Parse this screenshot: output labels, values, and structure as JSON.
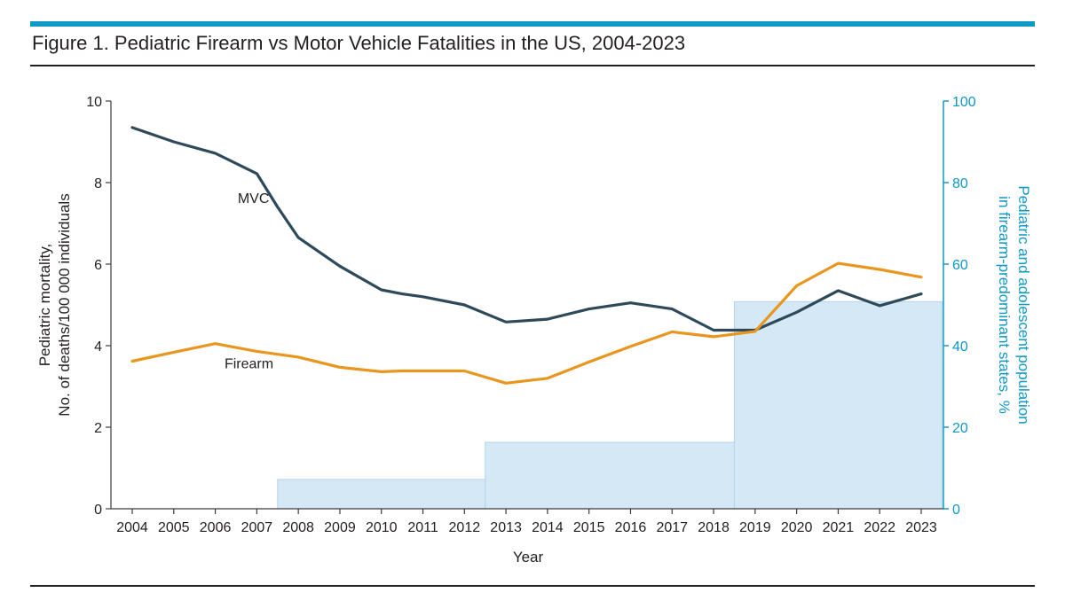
{
  "figure": {
    "title": "Figure 1. Pediatric Firearm vs Motor Vehicle Fatalities in the US, 2004-2023",
    "accent_color": "#0f98c4"
  },
  "chart_data": {
    "type": "line",
    "x": [
      2004,
      2005,
      2006,
      2007,
      2008,
      2009,
      2010,
      2011,
      2012,
      2013,
      2014,
      2015,
      2016,
      2017,
      2018,
      2019,
      2020,
      2021,
      2022,
      2023
    ],
    "xlabel": "Year",
    "ylabel_lines": [
      "Pediatric mortality,",
      "No. of deaths/100 000 individuals"
    ],
    "ylim": [
      0,
      10
    ],
    "yticks": [
      0,
      2,
      4,
      6,
      8,
      10
    ],
    "y2label_lines": [
      "Pediatric and adolescent population",
      "in firearm-predominant states, %"
    ],
    "y2lim": [
      0,
      100
    ],
    "y2ticks": [
      0,
      20,
      40,
      60,
      80,
      100
    ],
    "grid": false,
    "series": [
      {
        "name": "MVC",
        "color": "#2e4a5a",
        "points": [
          [
            2004,
            9.35
          ],
          [
            2005,
            9.0
          ],
          [
            2006,
            8.72
          ],
          [
            2007,
            8.22
          ],
          [
            2007.5,
            7.4
          ],
          [
            2008,
            6.65
          ],
          [
            2009,
            5.95
          ],
          [
            2010,
            5.37
          ],
          [
            2010.5,
            5.27
          ],
          [
            2011,
            5.2
          ],
          [
            2012,
            5.0
          ],
          [
            2013,
            4.58
          ],
          [
            2014,
            4.65
          ],
          [
            2015,
            4.9
          ],
          [
            2016,
            5.05
          ],
          [
            2017,
            4.9
          ],
          [
            2018,
            4.38
          ],
          [
            2019,
            4.38
          ],
          [
            2020,
            4.82
          ],
          [
            2021,
            5.35
          ],
          [
            2022,
            4.98
          ],
          [
            2023,
            5.27
          ]
        ]
      },
      {
        "name": "Firearm",
        "color": "#e8961e",
        "points": [
          [
            2004,
            3.62
          ],
          [
            2005,
            3.84
          ],
          [
            2006,
            4.05
          ],
          [
            2007,
            3.86
          ],
          [
            2008,
            3.72
          ],
          [
            2009,
            3.47
          ],
          [
            2010,
            3.36
          ],
          [
            2010.5,
            3.38
          ],
          [
            2011,
            3.38
          ],
          [
            2012,
            3.38
          ],
          [
            2013,
            3.08
          ],
          [
            2014,
            3.2
          ],
          [
            2015,
            3.6
          ],
          [
            2016,
            3.98
          ],
          [
            2017,
            4.34
          ],
          [
            2018,
            4.22
          ],
          [
            2019,
            4.35
          ],
          [
            2020,
            5.47
          ],
          [
            2021,
            6.02
          ],
          [
            2022,
            5.87
          ],
          [
            2023,
            5.68
          ]
        ]
      }
    ],
    "bars": {
      "color": "#d4e8f6",
      "axis": "right",
      "steps": [
        {
          "from": 2007.5,
          "to": 2012.5,
          "value": 7.2
        },
        {
          "from": 2012.5,
          "to": 2018.5,
          "value": 16.3
        },
        {
          "from": 2018.5,
          "to": 2023.5,
          "value": 50.8
        }
      ]
    },
    "annotations": [
      {
        "text": "MVC",
        "x": 2007.3,
        "y": 7.5
      },
      {
        "text": "Firearm",
        "x": 2007.4,
        "y": 3.45
      }
    ]
  }
}
